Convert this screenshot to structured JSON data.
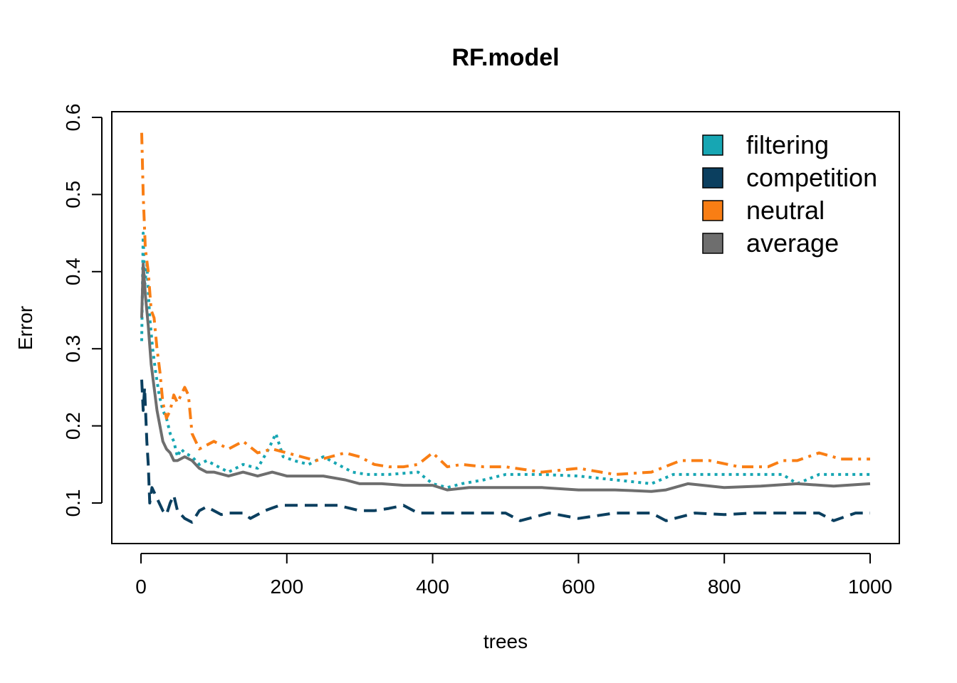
{
  "chart_data": {
    "type": "line",
    "title": "RF.model",
    "xlabel": "trees",
    "ylabel": "Error",
    "xlim": [
      0,
      1000
    ],
    "ylim": [
      0.05,
      0.6
    ],
    "xticks": [
      0,
      200,
      400,
      600,
      800,
      1000
    ],
    "yticks": [
      0.1,
      0.2,
      0.3,
      0.4,
      0.5,
      0.6
    ],
    "x_tick_labels": [
      "0",
      "200",
      "400",
      "600",
      "800",
      "1000"
    ],
    "y_tick_labels": [
      "0.1",
      "0.2",
      "0.3",
      "0.4",
      "0.5",
      "0.6"
    ],
    "legend_position": "top-right",
    "series": [
      {
        "name": "filtering",
        "color": "#17A6B3",
        "dash": "dotted",
        "points": [
          [
            1,
            0.31
          ],
          [
            3,
            0.45
          ],
          [
            5,
            0.38
          ],
          [
            8,
            0.41
          ],
          [
            12,
            0.34
          ],
          [
            16,
            0.3
          ],
          [
            20,
            0.27
          ],
          [
            25,
            0.24
          ],
          [
            30,
            0.22
          ],
          [
            35,
            0.21
          ],
          [
            40,
            0.19
          ],
          [
            45,
            0.18
          ],
          [
            50,
            0.16
          ],
          [
            55,
            0.17
          ],
          [
            60,
            0.165
          ],
          [
            70,
            0.16
          ],
          [
            80,
            0.15
          ],
          [
            90,
            0.155
          ],
          [
            100,
            0.15
          ],
          [
            120,
            0.14
          ],
          [
            140,
            0.15
          ],
          [
            160,
            0.145
          ],
          [
            175,
            0.17
          ],
          [
            185,
            0.19
          ],
          [
            195,
            0.16
          ],
          [
            210,
            0.155
          ],
          [
            230,
            0.15
          ],
          [
            250,
            0.16
          ],
          [
            270,
            0.15
          ],
          [
            290,
            0.14
          ],
          [
            310,
            0.137
          ],
          [
            340,
            0.137
          ],
          [
            380,
            0.14
          ],
          [
            400,
            0.125
          ],
          [
            420,
            0.12
          ],
          [
            440,
            0.125
          ],
          [
            470,
            0.13
          ],
          [
            500,
            0.137
          ],
          [
            550,
            0.137
          ],
          [
            600,
            0.135
          ],
          [
            650,
            0.13
          ],
          [
            700,
            0.125
          ],
          [
            730,
            0.137
          ],
          [
            800,
            0.137
          ],
          [
            880,
            0.137
          ],
          [
            900,
            0.125
          ],
          [
            930,
            0.137
          ],
          [
            1000,
            0.137
          ]
        ]
      },
      {
        "name": "competition",
        "color": "#0B3F5F",
        "dash": "dashed",
        "points": [
          [
            1,
            0.26
          ],
          [
            3,
            0.22
          ],
          [
            5,
            0.25
          ],
          [
            8,
            0.18
          ],
          [
            10,
            0.15
          ],
          [
            12,
            0.1
          ],
          [
            15,
            0.12
          ],
          [
            20,
            0.11
          ],
          [
            25,
            0.1
          ],
          [
            30,
            0.09
          ],
          [
            35,
            0.085
          ],
          [
            40,
            0.1
          ],
          [
            45,
            0.11
          ],
          [
            50,
            0.09
          ],
          [
            55,
            0.085
          ],
          [
            60,
            0.08
          ],
          [
            70,
            0.075
          ],
          [
            80,
            0.09
          ],
          [
            90,
            0.095
          ],
          [
            100,
            0.09
          ],
          [
            110,
            0.085
          ],
          [
            120,
            0.087
          ],
          [
            140,
            0.087
          ],
          [
            150,
            0.08
          ],
          [
            170,
            0.09
          ],
          [
            190,
            0.097
          ],
          [
            230,
            0.097
          ],
          [
            270,
            0.097
          ],
          [
            300,
            0.09
          ],
          [
            320,
            0.09
          ],
          [
            340,
            0.093
          ],
          [
            360,
            0.097
          ],
          [
            380,
            0.087
          ],
          [
            400,
            0.087
          ],
          [
            500,
            0.087
          ],
          [
            520,
            0.077
          ],
          [
            560,
            0.087
          ],
          [
            600,
            0.08
          ],
          [
            650,
            0.087
          ],
          [
            700,
            0.087
          ],
          [
            720,
            0.077
          ],
          [
            760,
            0.087
          ],
          [
            800,
            0.085
          ],
          [
            840,
            0.087
          ],
          [
            900,
            0.087
          ],
          [
            930,
            0.087
          ],
          [
            950,
            0.077
          ],
          [
            980,
            0.087
          ],
          [
            1000,
            0.087
          ]
        ]
      },
      {
        "name": "neutral",
        "color": "#F97E14",
        "dash": "dashdot",
        "points": [
          [
            1,
            0.58
          ],
          [
            3,
            0.5
          ],
          [
            6,
            0.43
          ],
          [
            10,
            0.4
          ],
          [
            14,
            0.35
          ],
          [
            18,
            0.34
          ],
          [
            22,
            0.3
          ],
          [
            26,
            0.27
          ],
          [
            30,
            0.23
          ],
          [
            35,
            0.21
          ],
          [
            40,
            0.22
          ],
          [
            45,
            0.24
          ],
          [
            50,
            0.23
          ],
          [
            55,
            0.24
          ],
          [
            60,
            0.25
          ],
          [
            65,
            0.24
          ],
          [
            70,
            0.19
          ],
          [
            80,
            0.17
          ],
          [
            90,
            0.175
          ],
          [
            100,
            0.18
          ],
          [
            120,
            0.17
          ],
          [
            140,
            0.18
          ],
          [
            160,
            0.165
          ],
          [
            180,
            0.17
          ],
          [
            200,
            0.165
          ],
          [
            220,
            0.16
          ],
          [
            240,
            0.155
          ],
          [
            260,
            0.16
          ],
          [
            280,
            0.165
          ],
          [
            300,
            0.16
          ],
          [
            320,
            0.15
          ],
          [
            340,
            0.147
          ],
          [
            360,
            0.147
          ],
          [
            380,
            0.15
          ],
          [
            400,
            0.165
          ],
          [
            420,
            0.147
          ],
          [
            440,
            0.15
          ],
          [
            470,
            0.147
          ],
          [
            500,
            0.147
          ],
          [
            550,
            0.14
          ],
          [
            600,
            0.145
          ],
          [
            650,
            0.137
          ],
          [
            700,
            0.14
          ],
          [
            740,
            0.155
          ],
          [
            780,
            0.155
          ],
          [
            820,
            0.147
          ],
          [
            860,
            0.147
          ],
          [
            880,
            0.155
          ],
          [
            900,
            0.155
          ],
          [
            930,
            0.165
          ],
          [
            960,
            0.157
          ],
          [
            1000,
            0.157
          ]
        ]
      },
      {
        "name": "average",
        "color": "#6E6E6E",
        "dash": "solid",
        "points": [
          [
            1,
            0.34
          ],
          [
            3,
            0.41
          ],
          [
            6,
            0.37
          ],
          [
            10,
            0.33
          ],
          [
            14,
            0.28
          ],
          [
            18,
            0.25
          ],
          [
            22,
            0.22
          ],
          [
            26,
            0.2
          ],
          [
            30,
            0.18
          ],
          [
            35,
            0.17
          ],
          [
            40,
            0.165
          ],
          [
            45,
            0.155
          ],
          [
            50,
            0.155
          ],
          [
            60,
            0.16
          ],
          [
            70,
            0.155
          ],
          [
            80,
            0.145
          ],
          [
            90,
            0.14
          ],
          [
            100,
            0.14
          ],
          [
            120,
            0.135
          ],
          [
            140,
            0.14
          ],
          [
            160,
            0.135
          ],
          [
            180,
            0.14
          ],
          [
            200,
            0.135
          ],
          [
            220,
            0.135
          ],
          [
            250,
            0.135
          ],
          [
            280,
            0.13
          ],
          [
            300,
            0.125
          ],
          [
            330,
            0.125
          ],
          [
            360,
            0.123
          ],
          [
            400,
            0.123
          ],
          [
            420,
            0.117
          ],
          [
            450,
            0.12
          ],
          [
            500,
            0.12
          ],
          [
            550,
            0.12
          ],
          [
            600,
            0.117
          ],
          [
            650,
            0.117
          ],
          [
            700,
            0.115
          ],
          [
            720,
            0.117
          ],
          [
            750,
            0.125
          ],
          [
            800,
            0.12
          ],
          [
            850,
            0.122
          ],
          [
            900,
            0.125
          ],
          [
            950,
            0.122
          ],
          [
            1000,
            0.125
          ]
        ]
      }
    ]
  }
}
